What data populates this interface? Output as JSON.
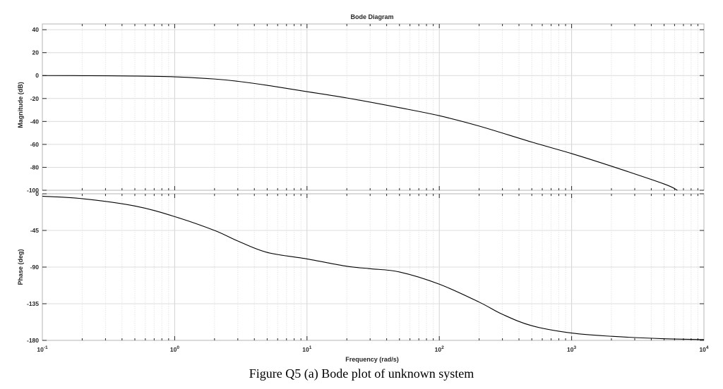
{
  "caption": "Figure Q5 (a) Bode plot of unknown system",
  "chart_data": [
    {
      "type": "line",
      "title": "Bode Diagram",
      "ylabel": "Magnitude (dB)",
      "xscale": "log",
      "xlim": [
        0.1,
        10000
      ],
      "ylim": [
        -100,
        45
      ],
      "yticks": [
        -100,
        -80,
        -60,
        -40,
        -20,
        0,
        20,
        40
      ],
      "grid": true,
      "series": [
        {
          "x": [
            0.1,
            0.2,
            0.5,
            1,
            2,
            3,
            5,
            10,
            20,
            50,
            100,
            200,
            500,
            1000,
            2000,
            5000,
            6300
          ],
          "values": [
            0,
            -0.1,
            -0.4,
            -1.1,
            -3,
            -5,
            -8.5,
            -14,
            -19.5,
            -28,
            -35,
            -44,
            -58,
            -68,
            -79,
            -94.5,
            -100
          ]
        }
      ]
    },
    {
      "type": "line",
      "ylabel": "Phase (deg)",
      "xlabel": "Frequency  (rad/s)",
      "xscale": "log",
      "xlim": [
        0.1,
        10000
      ],
      "ylim": [
        -180,
        0
      ],
      "yticks": [
        -180,
        -135,
        -90,
        -45,
        0
      ],
      "xticks": [
        {
          "base": "10",
          "exp": "-1"
        },
        {
          "base": "10",
          "exp": "0"
        },
        {
          "base": "10",
          "exp": "1"
        },
        {
          "base": "10",
          "exp": "2"
        },
        {
          "base": "10",
          "exp": "3"
        },
        {
          "base": "10",
          "exp": "4"
        }
      ],
      "grid": true,
      "series": [
        {
          "x": [
            0.1,
            0.2,
            0.5,
            1,
            2,
            3,
            5,
            10,
            20,
            30,
            50,
            100,
            200,
            300,
            500,
            1000,
            2000,
            5000,
            10000
          ],
          "values": [
            -3,
            -6,
            -15,
            -28,
            -45,
            -58,
            -72,
            -80,
            -89,
            -92,
            -96,
            -111,
            -133,
            -148,
            -162,
            -171,
            -175,
            -178,
            -179
          ]
        }
      ]
    }
  ]
}
